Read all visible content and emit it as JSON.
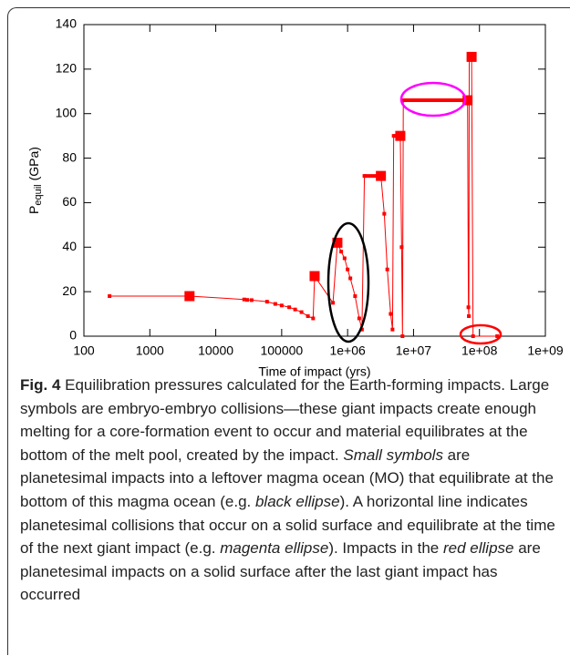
{
  "chart_data": {
    "type": "line",
    "xlabel": "Time of impact (yrs)",
    "ylabel": {
      "base": "P",
      "subscript": "equil",
      "unit": "(GPa)"
    },
    "xscale": "log",
    "xlim": [
      100,
      1000000000
    ],
    "xticks": [
      100,
      1000,
      10000,
      100000,
      {
        "value": 1000000,
        "label": "1e+06"
      },
      {
        "value": 10000000,
        "label": "1e+07"
      },
      {
        "value": 100000000,
        "label": "1e+08"
      },
      {
        "value": 1000000000,
        "label": "1e+09"
      }
    ],
    "ylim": [
      0,
      140
    ],
    "yticks": [
      0,
      20,
      40,
      60,
      80,
      100,
      120,
      140
    ],
    "series": [
      {
        "color": "#ff0000",
        "marker": "small",
        "x": [
          245,
          4000,
          27000,
          30000,
          35000,
          60000,
          80000,
          100000,
          130000,
          160000,
          200000,
          250000,
          300000,
          316000,
          600000,
          700000,
          800000,
          900000,
          1000000,
          1100000,
          1300000,
          1500000,
          1650000,
          1800000,
          3200000,
          3600000,
          4000000,
          4500000,
          4800000,
          5000000,
          6300000,
          6600000,
          6800000,
          7000000,
          66000000,
          68000000,
          69000000,
          70000000,
          76000000,
          80000000,
          186000000
        ],
        "values": [
          18,
          18,
          16.5,
          16.3,
          16.2,
          15.5,
          14.5,
          13.8,
          13,
          12,
          10.8,
          9,
          8,
          27,
          15,
          42,
          38,
          35,
          30,
          26,
          18,
          8,
          3,
          72,
          72,
          55,
          30,
          10,
          3,
          90,
          90,
          40,
          0,
          106,
          106,
          13,
          9,
          125.5,
          125.5,
          0,
          0
        ]
      },
      {
        "color": "#ff0000",
        "marker": "large",
        "x": [
          4000,
          316000,
          700000,
          3200000,
          6300000,
          66000000,
          76000000
        ],
        "values": [
          18,
          27,
          42,
          72,
          90,
          106,
          125.5
        ]
      }
    ]
  },
  "caption": {
    "runs": [
      {
        "text": "Fig. 4",
        "style": "bold"
      },
      {
        "text": " Equilibration pressures calculated for the Earth-forming impacts. Large symbols are embryo-embryo collisions—these giant impacts create enough melting for a core-formation event to occur and material equilibrates at the bottom of the melt pool, created by the impact. ",
        "style": "normal"
      },
      {
        "text": "Small symbols",
        "style": "italic"
      },
      {
        "text": " are planetesimal impacts into a leftover magma ocean (MO) that equilibrate at the bottom of this magma ocean (e.g. ",
        "style": "normal"
      },
      {
        "text": "black ellipse",
        "style": "italic"
      },
      {
        "text": "). A horizontal line indicates planetesimal collisions that occur on a solid surface and equilibrate at the time of the next giant impact (e.g. ",
        "style": "normal"
      },
      {
        "text": "magenta ellipse",
        "style": "italic"
      },
      {
        "text": "). Impacts in the ",
        "style": "normal"
      },
      {
        "text": "red ellipse",
        "style": "italic"
      },
      {
        "text": " are planetesimal impacts on a solid surface after the last giant impact has occurred",
        "style": "normal"
      }
    ]
  }
}
